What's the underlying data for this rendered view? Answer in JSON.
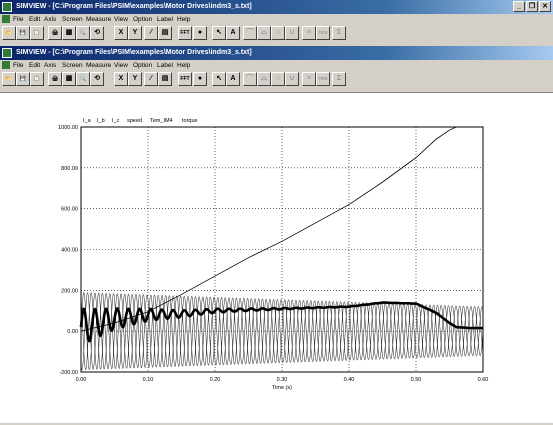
{
  "back_window": {
    "title": "SIMVIEW - [C:\\Program Files\\PSIM\\examples\\Motor Drives\\indm3_s.txt]",
    "menu": [
      "File",
      "Edit",
      "Axis",
      "Screen",
      "Measure",
      "View",
      "Option",
      "Label",
      "Help"
    ]
  },
  "front_window": {
    "title": "SIMVIEW - [C:\\Program Files\\PSIM\\examples\\Motor Drives\\indm3_s.txt]",
    "menu": [
      "File",
      "Edit",
      "Axis",
      "Screen",
      "Measure",
      "View",
      "Option",
      "Label",
      "Help"
    ]
  },
  "title_buttons": {
    "minimize": "_",
    "restore": "❐",
    "close": "✕"
  },
  "toolbar": [
    {
      "name": "open-icon",
      "glyph": "📂"
    },
    {
      "name": "save-icon",
      "glyph": "💾"
    },
    {
      "name": "copy-icon",
      "glyph": "📋"
    },
    {
      "name": "print-icon",
      "glyph": "🖨"
    },
    {
      "name": "data-icon",
      "glyph": "▦"
    },
    {
      "name": "zoom-icon",
      "glyph": "🔍"
    },
    {
      "name": "fit-icon",
      "glyph": "⟲"
    },
    {
      "name": "x-axis-button",
      "glyph": "X"
    },
    {
      "name": "y-axis-button",
      "glyph": "Y"
    },
    {
      "name": "add-curve-icon",
      "glyph": "⁄"
    },
    {
      "name": "screen-icon",
      "glyph": "▤"
    },
    {
      "name": "fft-button",
      "glyph": "FFT"
    },
    {
      "name": "stop-icon",
      "glyph": "●"
    },
    {
      "name": "pointer-icon",
      "glyph": "↖"
    },
    {
      "name": "text-icon",
      "glyph": "A"
    },
    {
      "name": "max-icon",
      "glyph": "⌒"
    },
    {
      "name": "min-icon",
      "glyph": "⌓"
    },
    {
      "name": "nextmax-icon",
      "glyph": "∩"
    },
    {
      "name": "nextmin-icon",
      "glyph": "∪"
    },
    {
      "name": "avg-icon",
      "glyph": "≡"
    },
    {
      "name": "rms-icon",
      "glyph": "rms"
    },
    {
      "name": "thd-icon",
      "glyph": "Σ"
    }
  ],
  "chart_data": {
    "type": "line",
    "legend": [
      "I_a",
      "I_b",
      "I_c",
      "speed",
      "Tem_IM4",
      "torque"
    ],
    "xlabel": "Time (s)",
    "x_ticks": [
      "0.00",
      "0.10",
      "0.20",
      "0.30",
      "0.40",
      "0.50",
      "0.60"
    ],
    "y_ticks": [
      "-200.00",
      "0.00",
      "200.00",
      "400.00",
      "600.00",
      "800.00",
      "1000.00"
    ],
    "xlim": [
      0,
      0.6
    ],
    "ylim": [
      -200,
      1000
    ],
    "grid": true,
    "series": [
      {
        "name": "speed",
        "x": [
          0,
          0.05,
          0.1,
          0.15,
          0.2,
          0.25,
          0.3,
          0.35,
          0.4,
          0.45,
          0.5,
          0.53,
          0.55,
          0.56,
          0.6
        ],
        "y": [
          0,
          40,
          95,
          180,
          270,
          360,
          440,
          530,
          620,
          730,
          850,
          940,
          985,
          1000,
          1000
        ]
      },
      {
        "name": "torque",
        "x": [
          0,
          0.05,
          0.1,
          0.15,
          0.2,
          0.25,
          0.3,
          0.35,
          0.4,
          0.45,
          0.5,
          0.53,
          0.55,
          0.56,
          0.58,
          0.6
        ],
        "y": [
          20,
          60,
          80,
          85,
          100,
          105,
          110,
          115,
          120,
          140,
          135,
          90,
          40,
          20,
          15,
          15
        ]
      },
      {
        "name": "I_a",
        "amplitude_start": 190,
        "amplitude_end": 120,
        "frequency_hz": 60
      },
      {
        "name": "I_b",
        "amplitude_start": 190,
        "amplitude_end": 120,
        "frequency_hz": 60
      },
      {
        "name": "I_c",
        "amplitude_start": 190,
        "amplitude_end": 120,
        "frequency_hz": 60
      }
    ]
  }
}
